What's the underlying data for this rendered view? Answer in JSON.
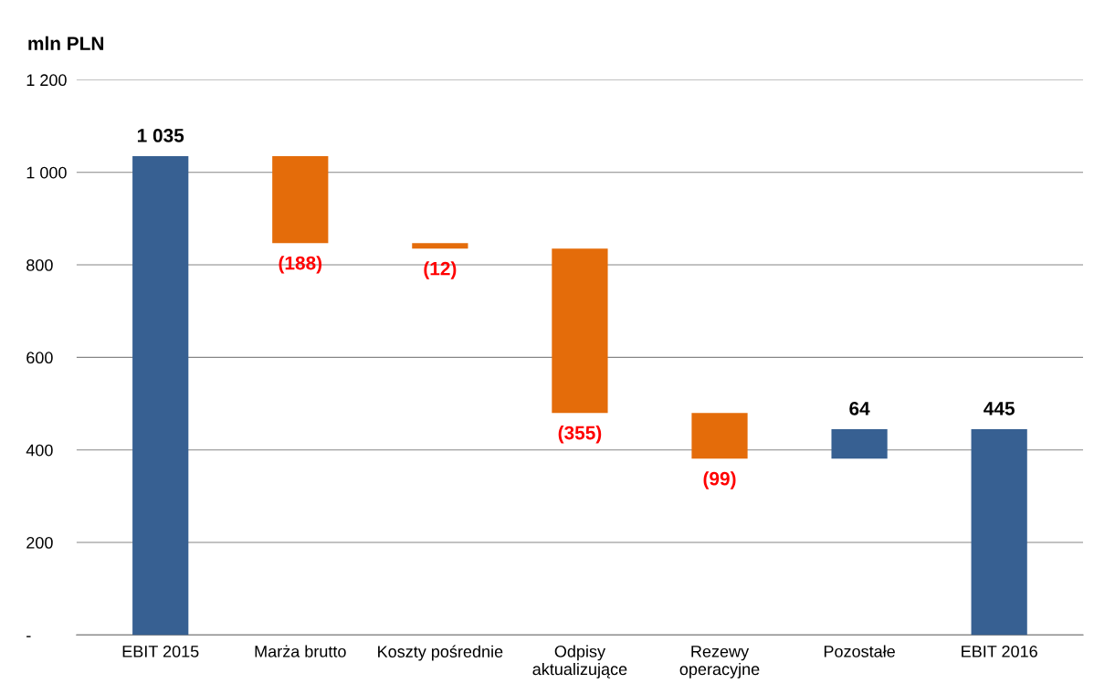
{
  "chart_data": {
    "type": "bar",
    "ylabel": "mln PLN",
    "categories": [
      "EBIT 2015",
      "Marża brutto",
      "Koszty pośrednie",
      "Odpisy\naktualizujące",
      "Rezewy\noperacyjne",
      "Pozostałe",
      "EBIT 2016"
    ],
    "values": [
      1035,
      -188,
      -12,
      -355,
      -99,
      64,
      445
    ],
    "base": [
      0,
      1035,
      847,
      835,
      480,
      381,
      0
    ],
    "colors": [
      "#376092",
      "#e46c0a",
      "#e46c0a",
      "#e46c0a",
      "#e46c0a",
      "#376092",
      "#376092"
    ],
    "value_labels": [
      "1 035",
      "(188)",
      "(12)",
      "(355)",
      "(99)",
      "64",
      "445"
    ],
    "ylim": [
      0,
      1200
    ],
    "yticks": [
      {
        "value": 0,
        "label": "-"
      },
      200,
      400,
      600,
      800,
      {
        "value": 1000,
        "label": "1 000"
      },
      {
        "value": 1200,
        "label": "1 200"
      }
    ],
    "grid": "y"
  }
}
